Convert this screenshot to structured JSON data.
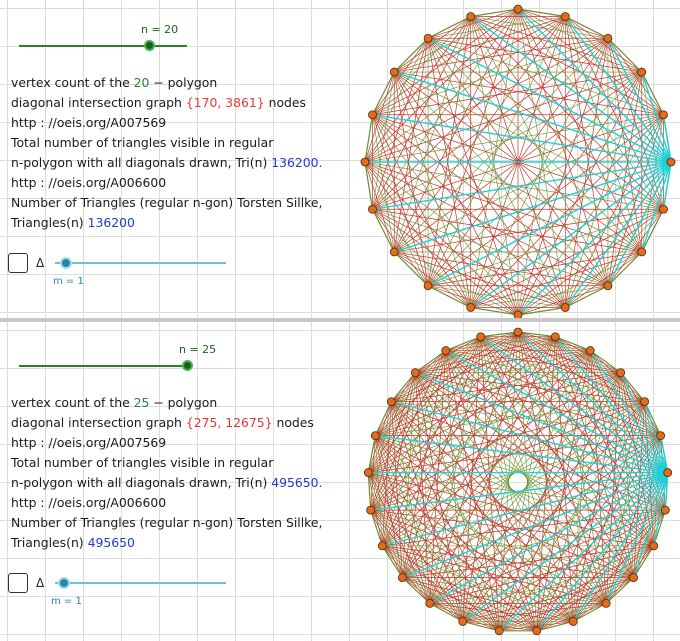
{
  "colors": {
    "edge": "#c0392b",
    "edge_alt": "#6a8f2a",
    "cyan": "#1fd0d8",
    "vertex": "#e56a1a",
    "slider_green": "#2e7d32",
    "count_green": "#2e7d32",
    "nodes_red": "#e53935",
    "link_blue": "#1f3bd1",
    "m_slider": "#1e88a8"
  },
  "panels": [
    {
      "n_label": "n = 20",
      "n_value": 20,
      "slider_position": 0.66,
      "vertex_prefix": "vertex count of the ",
      "vertex_n": "20",
      "vertex_suffix": " − polygon",
      "diag_prefix": "diagonal intersection graph ",
      "nodes_pair": "{170, 3861}",
      "diag_suffix": " nodes",
      "url1": "http : //oeis.org/A007569",
      "tri_line1": "Total number of triangles visible in regular",
      "tri_line2_prefix": "n-polygon with all diagonals drawn, Tri(n) ",
      "tri_value": "136200.",
      "url2": "http : //oeis.org/A006600",
      "sillke_line": "Number of Triangles (regular n-gon) Torsten Sillke,",
      "triangles_prefix": "Triangles(n)  ",
      "triangles_value": "136200",
      "delta_label": "Δ",
      "m_label": "m = 1",
      "m_value": 1
    },
    {
      "n_label": "n = 25",
      "n_value": 25,
      "slider_position": 0.99,
      "vertex_prefix": "vertex count of the ",
      "vertex_n": "25",
      "vertex_suffix": " − polygon",
      "diag_prefix": "diagonal intersection graph ",
      "nodes_pair": "{275, 12675}",
      "diag_suffix": " nodes",
      "url1": "http : //oeis.org/A007569",
      "tri_line1": "Total number of triangles visible in regular",
      "tri_line2_prefix": "n-polygon with all diagonals drawn, Tri(n) ",
      "tri_value": "495650.",
      "url2": "http : //oeis.org/A006600",
      "sillke_line": "Number of Triangles (regular n-gon) Torsten Sillke,",
      "triangles_prefix": "Triangles(n)  ",
      "triangles_value": "495650",
      "delta_label": "Δ",
      "m_label": "m = 1",
      "m_value": 1
    }
  ]
}
